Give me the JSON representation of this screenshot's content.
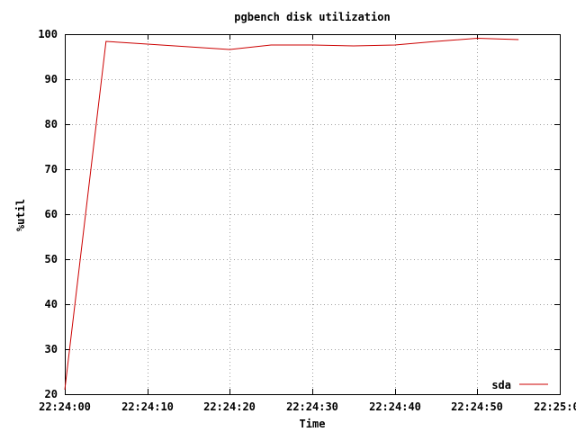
{
  "chart_data": {
    "type": "line",
    "title": "pgbench disk utilization",
    "xlabel": "Time",
    "ylabel": "%util",
    "x_ticks": [
      "22:24:00",
      "22:24:10",
      "22:24:20",
      "22:24:30",
      "22:24:40",
      "22:24:50",
      "22:25:00"
    ],
    "y_ticks": [
      20,
      30,
      40,
      50,
      60,
      70,
      80,
      90,
      100
    ],
    "xlim": [
      "22:24:00",
      "22:25:00"
    ],
    "ylim": [
      20,
      100
    ],
    "grid": true,
    "legend_position": "bottom-right",
    "series": [
      {
        "name": "sda",
        "color": "#cc0000",
        "x": [
          "22:24:00",
          "22:24:05",
          "22:24:10",
          "22:24:15",
          "22:24:20",
          "22:24:25",
          "22:24:30",
          "22:24:35",
          "22:24:40",
          "22:24:45",
          "22:24:50",
          "22:24:55"
        ],
        "y": [
          21.0,
          98.4,
          97.8,
          97.2,
          96.6,
          97.6,
          97.6,
          97.4,
          97.6,
          98.4,
          99.1,
          98.8
        ]
      }
    ]
  }
}
